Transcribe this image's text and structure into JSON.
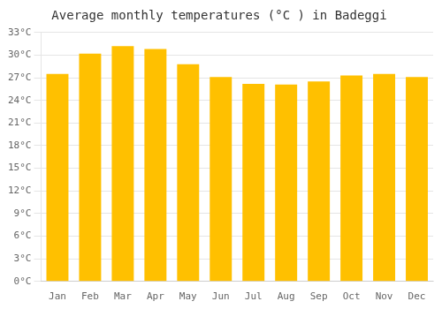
{
  "chart_data": {
    "type": "bar",
    "title": "Average monthly temperatures (°C ) in Badeggi",
    "categories": [
      "Jan",
      "Feb",
      "Mar",
      "Apr",
      "May",
      "Jun",
      "Jul",
      "Aug",
      "Sep",
      "Oct",
      "Nov",
      "Dec"
    ],
    "values": [
      27.5,
      30.2,
      31.2,
      30.8,
      28.8,
      27.1,
      26.2,
      26.1,
      26.5,
      27.3,
      27.5,
      27.1
    ],
    "color": "#FFC000",
    "ylim": [
      0,
      33
    ],
    "yticks": [
      {
        "value": 0,
        "label": "0°C"
      },
      {
        "value": 3,
        "label": "3°C"
      },
      {
        "value": 6,
        "label": "6°C"
      },
      {
        "value": 9,
        "label": "9°C"
      },
      {
        "value": 12,
        "label": "12°C"
      },
      {
        "value": 15,
        "label": "15°C"
      },
      {
        "value": 18,
        "label": "18°C"
      },
      {
        "value": 21,
        "label": "21°C"
      },
      {
        "value": 24,
        "label": "24°C"
      },
      {
        "value": 27,
        "label": "27°C"
      },
      {
        "value": 30,
        "label": "30°C"
      },
      {
        "value": 33,
        "label": "33°C"
      }
    ],
    "grid": true
  }
}
